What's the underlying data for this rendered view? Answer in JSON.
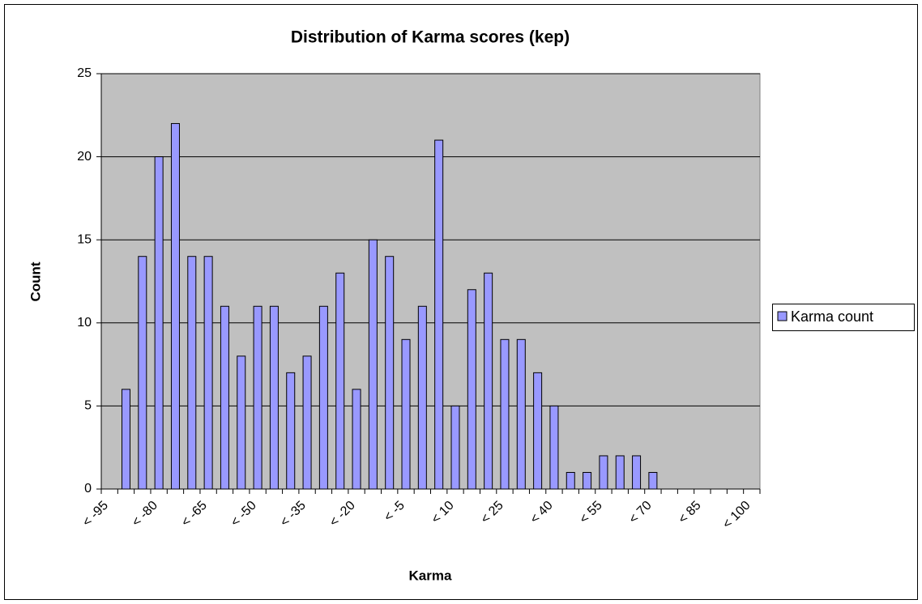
{
  "chart_data": {
    "type": "bar",
    "title": "Distribution of Karma scores (kep)",
    "x_label": "Karma",
    "y_label": "Count",
    "categories": [
      "< -95",
      null,
      null,
      "< -80",
      null,
      null,
      "< -65",
      null,
      null,
      "< -50",
      null,
      null,
      "< -35",
      null,
      null,
      "< -20",
      null,
      null,
      "< -5",
      null,
      null,
      "< 10",
      null,
      null,
      "< 25",
      null,
      null,
      "< 40",
      null,
      null,
      "< 55",
      null,
      null,
      "< 70",
      null,
      null,
      "< 85",
      null,
      null,
      "< 100"
    ],
    "series": [
      {
        "name": "Karma count",
        "color": "#9999ff",
        "values": [
          0,
          6,
          14,
          20,
          22,
          14,
          14,
          11,
          8,
          11,
          11,
          7,
          8,
          11,
          13,
          6,
          15,
          14,
          9,
          11,
          21,
          5,
          12,
          13,
          9,
          9,
          7,
          5,
          1,
          1,
          2,
          2,
          2,
          1,
          0,
          0,
          0,
          0,
          0,
          0
        ]
      }
    ],
    "ylim": [
      0,
      25
    ],
    "yticks": [
      0,
      5,
      10,
      15,
      20,
      25
    ],
    "grid": true,
    "legend": "right"
  }
}
